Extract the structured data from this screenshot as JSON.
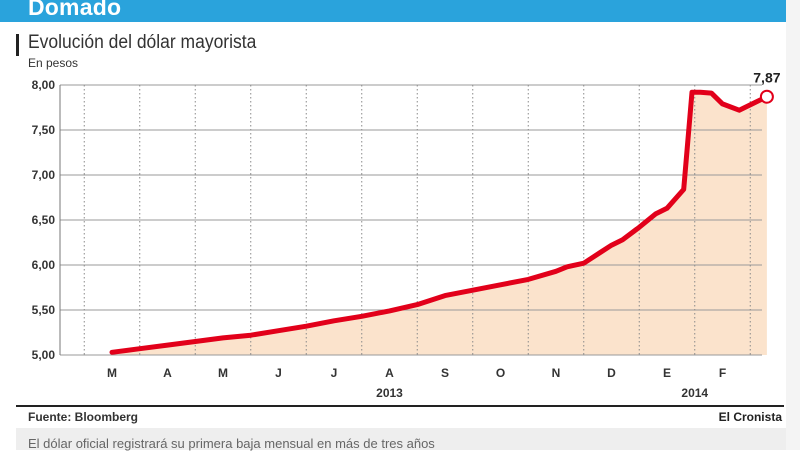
{
  "header": {
    "title": "Domado"
  },
  "footer": {
    "source": "Fuente: Bloomberg",
    "brand": "El Cronista",
    "caption": "El dólar oficial registrará su primera baja mensual en más de tres años"
  },
  "colors": {
    "header": "#2aa3dc",
    "line": "#e2001a",
    "fill": "#fbe3cc"
  },
  "chart_data": {
    "type": "area",
    "title": "Evolución del dólar mayorista",
    "ylabel": "En pesos",
    "xlabel": "",
    "ylim": [
      5.0,
      8.0
    ],
    "yticks": [
      "8,00",
      "7,50",
      "7,00",
      "6,50",
      "6,00",
      "5,50",
      "5,00"
    ],
    "ytick_values": [
      8.0,
      7.5,
      7.0,
      6.5,
      6.0,
      5.5,
      5.0
    ],
    "months": [
      "M",
      "A",
      "M",
      "J",
      "J",
      "A",
      "S",
      "O",
      "N",
      "D",
      "E",
      "F"
    ],
    "years": [
      {
        "label": "2013",
        "month_index": 5
      },
      {
        "label": "2014",
        "month_index": 10.5
      }
    ],
    "grid": true,
    "series": [
      {
        "x": [
          0.0,
          0.5,
          1.0,
          1.5,
          2.0,
          2.5,
          3.0,
          3.5,
          4.0,
          4.5,
          5.0,
          5.5,
          6.0,
          6.5,
          7.0,
          7.5,
          8.0,
          8.2,
          8.5,
          8.8,
          9.0,
          9.2,
          9.5,
          9.8,
          10.0,
          10.3,
          10.45,
          10.6,
          10.8,
          11.0,
          11.3,
          11.6,
          11.8
        ],
        "y": [
          5.03,
          5.07,
          5.11,
          5.15,
          5.19,
          5.22,
          5.27,
          5.32,
          5.38,
          5.43,
          5.49,
          5.56,
          5.66,
          5.72,
          5.78,
          5.84,
          5.93,
          5.98,
          6.02,
          6.14,
          6.22,
          6.28,
          6.42,
          6.57,
          6.63,
          6.84,
          7.92,
          7.92,
          7.91,
          7.79,
          7.72,
          7.81,
          7.87
        ]
      }
    ],
    "end_label": "7,87"
  }
}
